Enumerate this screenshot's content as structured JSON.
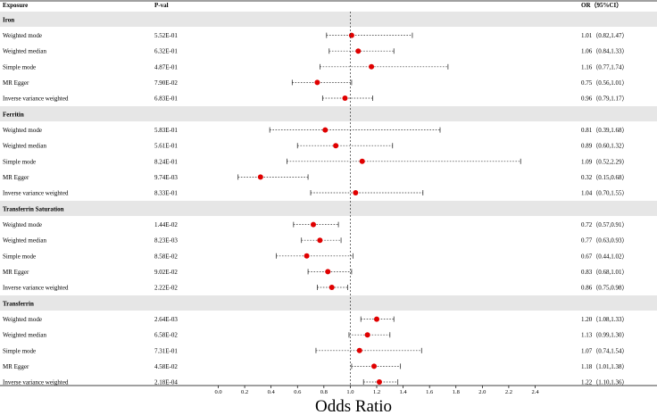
{
  "chart_data": {
    "type": "forest",
    "title": "",
    "headers": {
      "exposure": "Exposure",
      "pval": "P-val",
      "or": "OR（95%CI）"
    },
    "xlabel": "Odds Ratio",
    "xlim": [
      0.0,
      2.4
    ],
    "xticks": [
      "0.0",
      "0.2",
      "0.4",
      "0.6",
      "0.8",
      "1.0",
      "1.2",
      "1.4",
      "1.6",
      "1.8",
      "2.0",
      "2.2",
      "2.4"
    ],
    "reference_line": 1.0,
    "point_color": "#e00000",
    "group_band_color": "#e6e6e6",
    "groups": [
      {
        "name": "Iron",
        "rows": [
          {
            "method": "Weighted mode",
            "pval": "5.52E-01",
            "or": 1.01,
            "lo": 0.82,
            "hi": 1.47,
            "or_text": "1.01（0.82,1.47）"
          },
          {
            "method": "Weighted median",
            "pval": "6.32E-01",
            "or": 1.06,
            "lo": 0.84,
            "hi": 1.33,
            "or_text": "1.06（0.84,1.33）"
          },
          {
            "method": "Simple mode",
            "pval": "4.87E-01",
            "or": 1.16,
            "lo": 0.77,
            "hi": 1.74,
            "or_text": "1.16（0.77,1.74）"
          },
          {
            "method": "MR Egger",
            "pval": "7.90E-02",
            "or": 0.75,
            "lo": 0.56,
            "hi": 1.01,
            "or_text": "0.75（0.56,1.01）"
          },
          {
            "method": "Inverse variance weighted",
            "pval": "6.83E-01",
            "or": 0.96,
            "lo": 0.79,
            "hi": 1.17,
            "or_text": "0.96（0.79,1.17）"
          }
        ]
      },
      {
        "name": "Ferritin",
        "rows": [
          {
            "method": "Weighted mode",
            "pval": "5.83E-01",
            "or": 0.81,
            "lo": 0.39,
            "hi": 1.68,
            "or_text": "0.81（0.39,1.68）"
          },
          {
            "method": "Weighted median",
            "pval": "5.61E-01",
            "or": 0.89,
            "lo": 0.6,
            "hi": 1.32,
            "or_text": "0.89（0.60,1.32）"
          },
          {
            "method": "Simple mode",
            "pval": "8.24E-01",
            "or": 1.09,
            "lo": 0.52,
            "hi": 2.29,
            "or_text": "1.09（0.52,2.29）"
          },
          {
            "method": "MR Egger",
            "pval": "9.74E-03",
            "or": 0.32,
            "lo": 0.15,
            "hi": 0.68,
            "or_text": "0.32（0.15,0.68）"
          },
          {
            "method": "Inverse variance weighted",
            "pval": "8.33E-01",
            "or": 1.04,
            "lo": 0.7,
            "hi": 1.55,
            "or_text": "1.04（0.70,1.55）"
          }
        ]
      },
      {
        "name": "Transferrin Saturation",
        "rows": [
          {
            "method": "Weighted mode",
            "pval": "1.44E-02",
            "or": 0.72,
            "lo": 0.57,
            "hi": 0.91,
            "or_text": "0.72（0.57,0.91）"
          },
          {
            "method": "Weighted median",
            "pval": "8.23E-03",
            "or": 0.77,
            "lo": 0.63,
            "hi": 0.93,
            "or_text": "0.77（0.63,0.93）"
          },
          {
            "method": "Simple mode",
            "pval": "8.58E-02",
            "or": 0.67,
            "lo": 0.44,
            "hi": 1.02,
            "or_text": "0.67（0.44,1.02）"
          },
          {
            "method": "MR Egger",
            "pval": "9.02E-02",
            "or": 0.83,
            "lo": 0.68,
            "hi": 1.01,
            "or_text": "0.83（0.68,1.01）"
          },
          {
            "method": "Inverse variance weighted",
            "pval": "2.22E-02",
            "or": 0.86,
            "lo": 0.75,
            "hi": 0.98,
            "or_text": "0.86（0.75,0.98）"
          }
        ]
      },
      {
        "name": "Transferrin",
        "rows": [
          {
            "method": "Weighted mode",
            "pval": "2.64E-03",
            "or": 1.2,
            "lo": 1.08,
            "hi": 1.33,
            "or_text": "1.20（1.08,1.33）"
          },
          {
            "method": "Weighted median",
            "pval": "6.58E-02",
            "or": 1.13,
            "lo": 0.99,
            "hi": 1.3,
            "or_text": "1.13（0.99,1.30）"
          },
          {
            "method": "Simple mode",
            "pval": "7.31E-01",
            "or": 1.07,
            "lo": 0.74,
            "hi": 1.54,
            "or_text": "1.07（0.74,1.54）"
          },
          {
            "method": "MR Egger",
            "pval": "4.58E-02",
            "or": 1.18,
            "lo": 1.01,
            "hi": 1.38,
            "or_text": "1.18（1.01,1.38）"
          },
          {
            "method": "Inverse variance weighted",
            "pval": "2.18E-04",
            "or": 1.22,
            "lo": 1.1,
            "hi": 1.36,
            "or_text": "1.22（1.10,1.36）"
          }
        ]
      }
    ]
  }
}
